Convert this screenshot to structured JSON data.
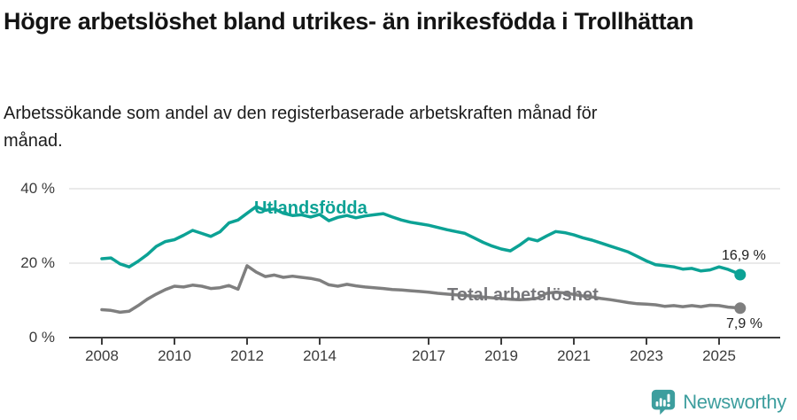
{
  "header": {
    "title": "Högre arbetslöshet bland utrikes- än inrikesfödda i Trollhättan",
    "subtitle": "Arbetssökande som andel av den registerbaserade arbetskraften månad för månad."
  },
  "chart_data": {
    "type": "line",
    "title": "Högre arbetslöshet bland utrikes- än inrikesfödda i Trollhättan",
    "subtitle": "Arbetssökande som andel av den registerbaserade arbetskraften månad för månad.",
    "xlabel": "",
    "ylabel": "",
    "grid": true,
    "legend_position": "inline-labels",
    "xlim": [
      2007.1,
      2026.6
    ],
    "ylim": [
      0,
      40
    ],
    "x_ticks": [
      2008,
      2010,
      2012,
      2014,
      2017,
      2019,
      2021,
      2023,
      2025
    ],
    "y_ticks": [
      {
        "value": 0,
        "label": "0 %"
      },
      {
        "value": 20,
        "label": "20 %"
      },
      {
        "value": 40,
        "label": "40 %"
      }
    ],
    "x": [
      2008,
      2008.25,
      2008.5,
      2008.75,
      2009,
      2009.25,
      2009.5,
      2009.75,
      2010,
      2010.25,
      2010.5,
      2010.75,
      2011,
      2011.25,
      2011.5,
      2011.75,
      2012,
      2012.25,
      2012.5,
      2012.75,
      2013,
      2013.25,
      2013.5,
      2013.75,
      2014,
      2014.25,
      2014.5,
      2014.75,
      2015,
      2015.25,
      2015.5,
      2015.75,
      2016,
      2016.25,
      2016.5,
      2016.75,
      2017,
      2017.25,
      2017.5,
      2017.75,
      2018,
      2018.25,
      2018.5,
      2018.75,
      2019,
      2019.25,
      2019.5,
      2019.75,
      2020,
      2020.25,
      2020.5,
      2020.75,
      2021,
      2021.25,
      2021.5,
      2021.75,
      2022,
      2022.25,
      2022.5,
      2022.75,
      2023,
      2023.25,
      2023.5,
      2023.75,
      2024,
      2024.25,
      2024.5,
      2024.75,
      2025,
      2025.25,
      2025.5,
      2025.58
    ],
    "series": [
      {
        "name": "Utlandsfödda",
        "color": "#0ca295",
        "end_label": "16,9 %",
        "end_value": 16.9,
        "values": [
          21.2,
          21.4,
          19.8,
          19.0,
          20.5,
          22.3,
          24.5,
          25.8,
          26.3,
          27.5,
          28.8,
          28.0,
          27.2,
          28.4,
          30.8,
          31.6,
          33.4,
          35.2,
          34.2,
          34.6,
          33.4,
          32.8,
          33.0,
          32.4,
          33.1,
          31.4,
          32.3,
          32.8,
          32.2,
          32.7,
          33.0,
          33.3,
          32.4,
          31.6,
          31.0,
          30.6,
          30.2,
          29.6,
          29.0,
          28.5,
          28.0,
          26.8,
          25.6,
          24.6,
          23.8,
          23.3,
          24.8,
          26.6,
          26.0,
          27.3,
          28.5,
          28.2,
          27.6,
          26.8,
          26.2,
          25.4,
          24.6,
          23.8,
          23.0,
          21.8,
          20.6,
          19.6,
          19.3,
          19.0,
          18.4,
          18.6,
          17.9,
          18.2,
          19.0,
          18.3,
          17.3,
          16.9
        ]
      },
      {
        "name": "Total arbetslöshet",
        "color": "#7f7f7f",
        "end_label": "7,9 %",
        "end_value": 7.9,
        "values": [
          7.5,
          7.3,
          6.8,
          7.1,
          8.6,
          10.3,
          11.7,
          12.9,
          13.8,
          13.6,
          14.1,
          13.8,
          13.2,
          13.4,
          14.0,
          13.0,
          19.3,
          17.6,
          16.4,
          16.8,
          16.2,
          16.5,
          16.2,
          15.9,
          15.4,
          14.2,
          13.8,
          14.3,
          13.9,
          13.6,
          13.4,
          13.2,
          12.9,
          12.8,
          12.6,
          12.4,
          12.2,
          11.9,
          11.7,
          11.5,
          11.3,
          11.1,
          10.9,
          10.7,
          10.5,
          10.3,
          10.2,
          10.3,
          10.6,
          11.9,
          12.2,
          12.0,
          11.6,
          11.2,
          10.9,
          10.5,
          10.2,
          9.8,
          9.4,
          9.1,
          9.0,
          8.8,
          8.4,
          8.6,
          8.3,
          8.6,
          8.3,
          8.7,
          8.6,
          8.2,
          8.0,
          7.9
        ]
      }
    ]
  },
  "colors": {
    "accent_teal": "#0ca295",
    "line_gray": "#7f7f7f",
    "grid": "#d4d4d4",
    "axis": "#3d3d3d"
  },
  "footer": {
    "brand": "Newsworthy"
  }
}
